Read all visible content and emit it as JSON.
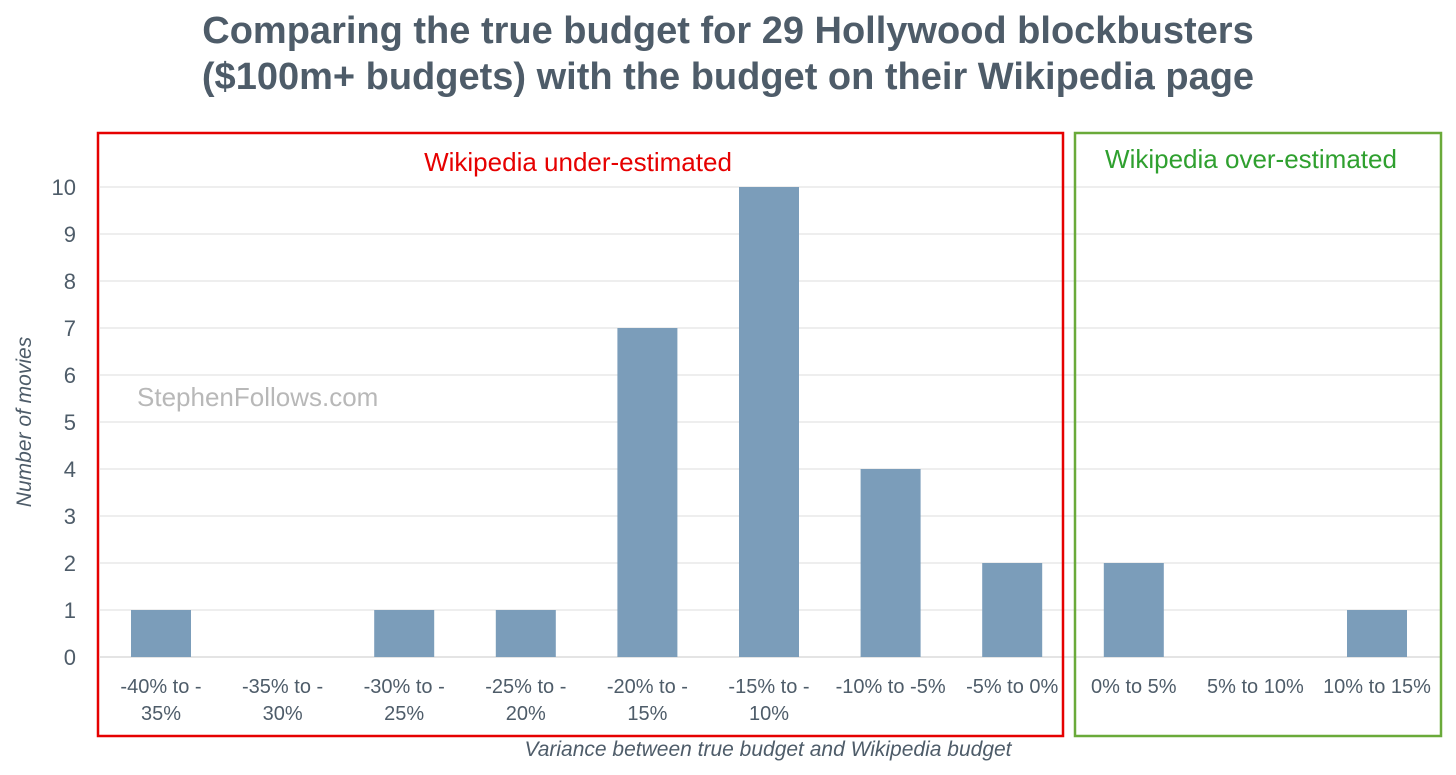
{
  "chart_data": {
    "type": "bar",
    "title_line1": "Comparing the true budget for 29 Hollywood blockbusters",
    "title_line2": "($100m+ budgets) with the budget on their Wikipedia page",
    "xlabel": "Variance between true budget and Wikipedia budget",
    "ylabel": "Number of movies",
    "ylim": [
      0,
      10
    ],
    "yticks": [
      0,
      1,
      2,
      3,
      4,
      5,
      6,
      7,
      8,
      9,
      10
    ],
    "grid": true,
    "categories": [
      [
        "-40% to -",
        "35%"
      ],
      [
        "-35% to -",
        "30%"
      ],
      [
        "-30% to -",
        "25%"
      ],
      [
        "-25% to -",
        "20%"
      ],
      [
        "-20% to -",
        "15%"
      ],
      [
        "-15% to -",
        "10%"
      ],
      [
        "-10% to -5%"
      ],
      [
        "-5% to 0%"
      ],
      [
        "0% to 5%"
      ],
      [
        "5% to 10%"
      ],
      [
        "10% to 15%"
      ]
    ],
    "values": [
      1,
      0,
      1,
      1,
      7,
      10,
      4,
      2,
      2,
      0,
      1
    ],
    "bar_color": "#7b9dba",
    "annotations": {
      "under": {
        "text": "Wikipedia under-estimated",
        "color": "#e60000",
        "categories": [
          0,
          7
        ]
      },
      "over": {
        "text": "Wikipedia over-estimated",
        "color": "#2fa02f",
        "categories": [
          8,
          10
        ]
      }
    },
    "watermark": "StephenFollows.com"
  }
}
